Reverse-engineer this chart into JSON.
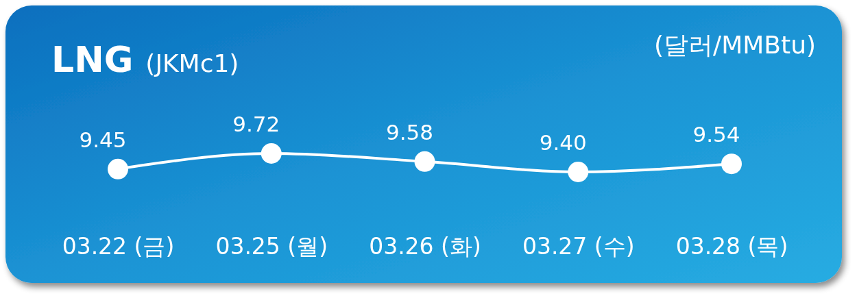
{
  "chart_data": {
    "type": "line",
    "title": "LNG",
    "subtitle": "(JKMc1)",
    "ylabel": "(달러/MMBtu)",
    "categories": [
      "03.22 (금)",
      "03.25 (월)",
      "03.26 (화)",
      "03.27 (수)",
      "03.28 (목)"
    ],
    "series": [
      {
        "color": "#ffffff",
        "values": [
          9.45,
          9.72,
          9.58,
          9.4,
          9.54
        ],
        "value_labels": [
          "9.45",
          "9.72",
          "9.58",
          "9.40",
          "9.54"
        ]
      }
    ],
    "marker": "circle",
    "line_style": "solid"
  }
}
